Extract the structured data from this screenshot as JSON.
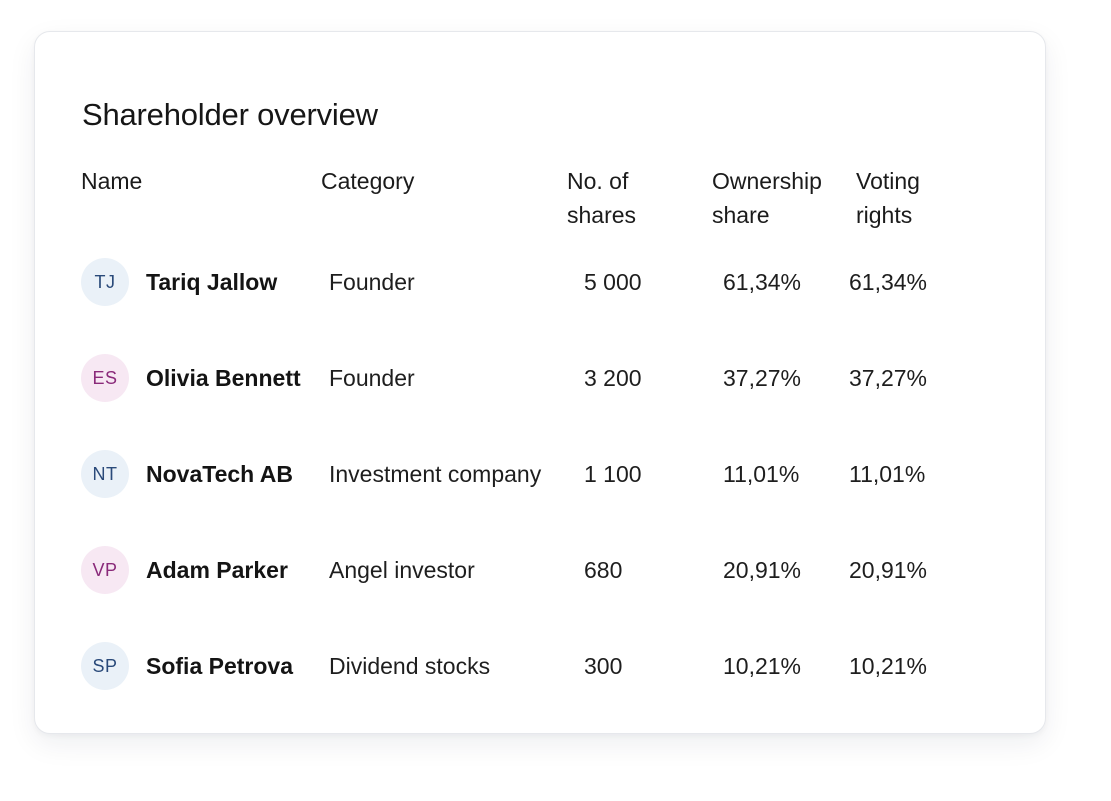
{
  "card": {
    "title": "Shareholder overview"
  },
  "columns": {
    "name": "Name",
    "category": "Category",
    "shares_line1": "No. of",
    "shares_line2": "shares",
    "ownership_line1": "Ownership",
    "ownership_line2": "share",
    "voting_line1": "Voting",
    "voting_line2": "rights"
  },
  "rows": [
    {
      "initials": "TJ",
      "avatar_color": "#eaf1f8",
      "name": "Tariq Jallow",
      "category": "Founder",
      "shares": "5 000",
      "ownership": "61,34%",
      "voting": "61,34%"
    },
    {
      "initials": "ES",
      "avatar_color": "#f7e8f3",
      "name": "Olivia Bennett",
      "category": "Founder",
      "shares": "3 200",
      "ownership": "37,27%",
      "voting": "37,27%"
    },
    {
      "initials": "NT",
      "avatar_color": "#eaf1f8",
      "name": "NovaTech AB",
      "category": "Investment company",
      "shares": "1 100",
      "ownership": "11,01%",
      "voting": "11,01%"
    },
    {
      "initials": "VP",
      "avatar_color": "#f7e8f3",
      "name": "Adam Parker",
      "category": "Angel investor",
      "shares": "680",
      "ownership": "20,91%",
      "voting": "20,91%"
    },
    {
      "initials": "SP",
      "avatar_color": "#eaf1f8",
      "name": "Sofia Petrova",
      "category": "Dividend stocks",
      "shares": "300",
      "ownership": "10,21%",
      "voting": "10,21%"
    }
  ]
}
